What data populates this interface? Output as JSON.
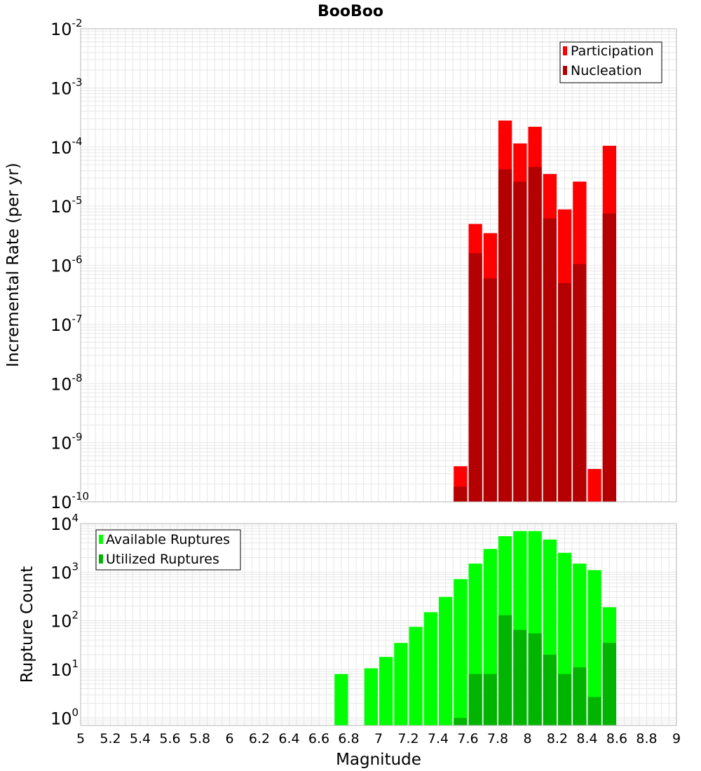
{
  "title": "BooBoo",
  "colors": {
    "participation": "#ff0000",
    "nucleation": "#b40000",
    "available": "#00ff00",
    "utilized": "#00b400",
    "grid": "#e6e6e6",
    "frame": "#b4b4b4"
  },
  "chart_data": [
    {
      "type": "bar",
      "title": "BooBoo",
      "xlabel": "Magnitude",
      "ylabel": "Incremental Rate (per yr)",
      "xlim": [
        5,
        9
      ],
      "ylim": [
        1e-10,
        0.01
      ],
      "yscale": "log",
      "bin_width": 0.1,
      "y_tick_exponents": [
        "-10",
        "-9",
        "-8",
        "-7",
        "-6",
        "-5",
        "-4",
        "-3",
        "-2"
      ],
      "legend": "top-right",
      "x": [
        7.55,
        7.65,
        7.75,
        7.85,
        7.95,
        8.05,
        8.15,
        8.25,
        8.35,
        8.45,
        8.55
      ],
      "series": [
        {
          "name": "Participation",
          "color": "#ff0000",
          "values": [
            4e-10,
            5e-06,
            3.5e-06,
            0.00028,
            0.000115,
            0.00022,
            3.5e-05,
            8.8e-06,
            2.6e-05,
            3.6e-10,
            0.000105
          ]
        },
        {
          "name": "Nucleation",
          "color": "#b40000",
          "values": [
            1.8e-10,
            1.6e-06,
            6e-07,
            4.2e-05,
            2.6e-05,
            4.6e-05,
            6.2e-06,
            5e-07,
            1.05e-06,
            null,
            7.5e-06
          ]
        }
      ]
    },
    {
      "type": "bar",
      "xlabel": "Magnitude",
      "ylabel": "Rupture Count",
      "xlim": [
        5,
        9
      ],
      "ylim": [
        0.7,
        10000
      ],
      "yscale": "log",
      "bin_width": 0.1,
      "y_tick_exponents": [
        "0",
        "1",
        "2",
        "3",
        "4"
      ],
      "x_ticks": [
        "5",
        "5.2",
        "5.4",
        "5.6",
        "5.8",
        "6",
        "6.2",
        "6.4",
        "6.6",
        "6.8",
        "7",
        "7.2",
        "7.4",
        "7.6",
        "7.8",
        "8",
        "8.2",
        "8.4",
        "8.6",
        "8.8",
        "9"
      ],
      "legend": "top-left",
      "x": [
        6.75,
        6.95,
        7.05,
        7.15,
        7.25,
        7.35,
        7.45,
        7.55,
        7.65,
        7.75,
        7.85,
        7.95,
        8.05,
        8.15,
        8.25,
        8.35,
        8.45,
        8.55
      ],
      "series": [
        {
          "name": "Available Ruptures",
          "color": "#00ff00",
          "values": [
            8,
            10.5,
            18,
            35,
            75,
            150,
            310,
            720,
            1500,
            3000,
            5500,
            7000,
            7000,
            4700,
            2500,
            1500,
            1100,
            190
          ]
        },
        {
          "name": "Utilized Ruptures",
          "color": "#00b400",
          "values": [
            null,
            null,
            null,
            null,
            null,
            null,
            null,
            1,
            8,
            8,
            130,
            65,
            55,
            20,
            8,
            11,
            2.7,
            35
          ]
        }
      ]
    }
  ]
}
